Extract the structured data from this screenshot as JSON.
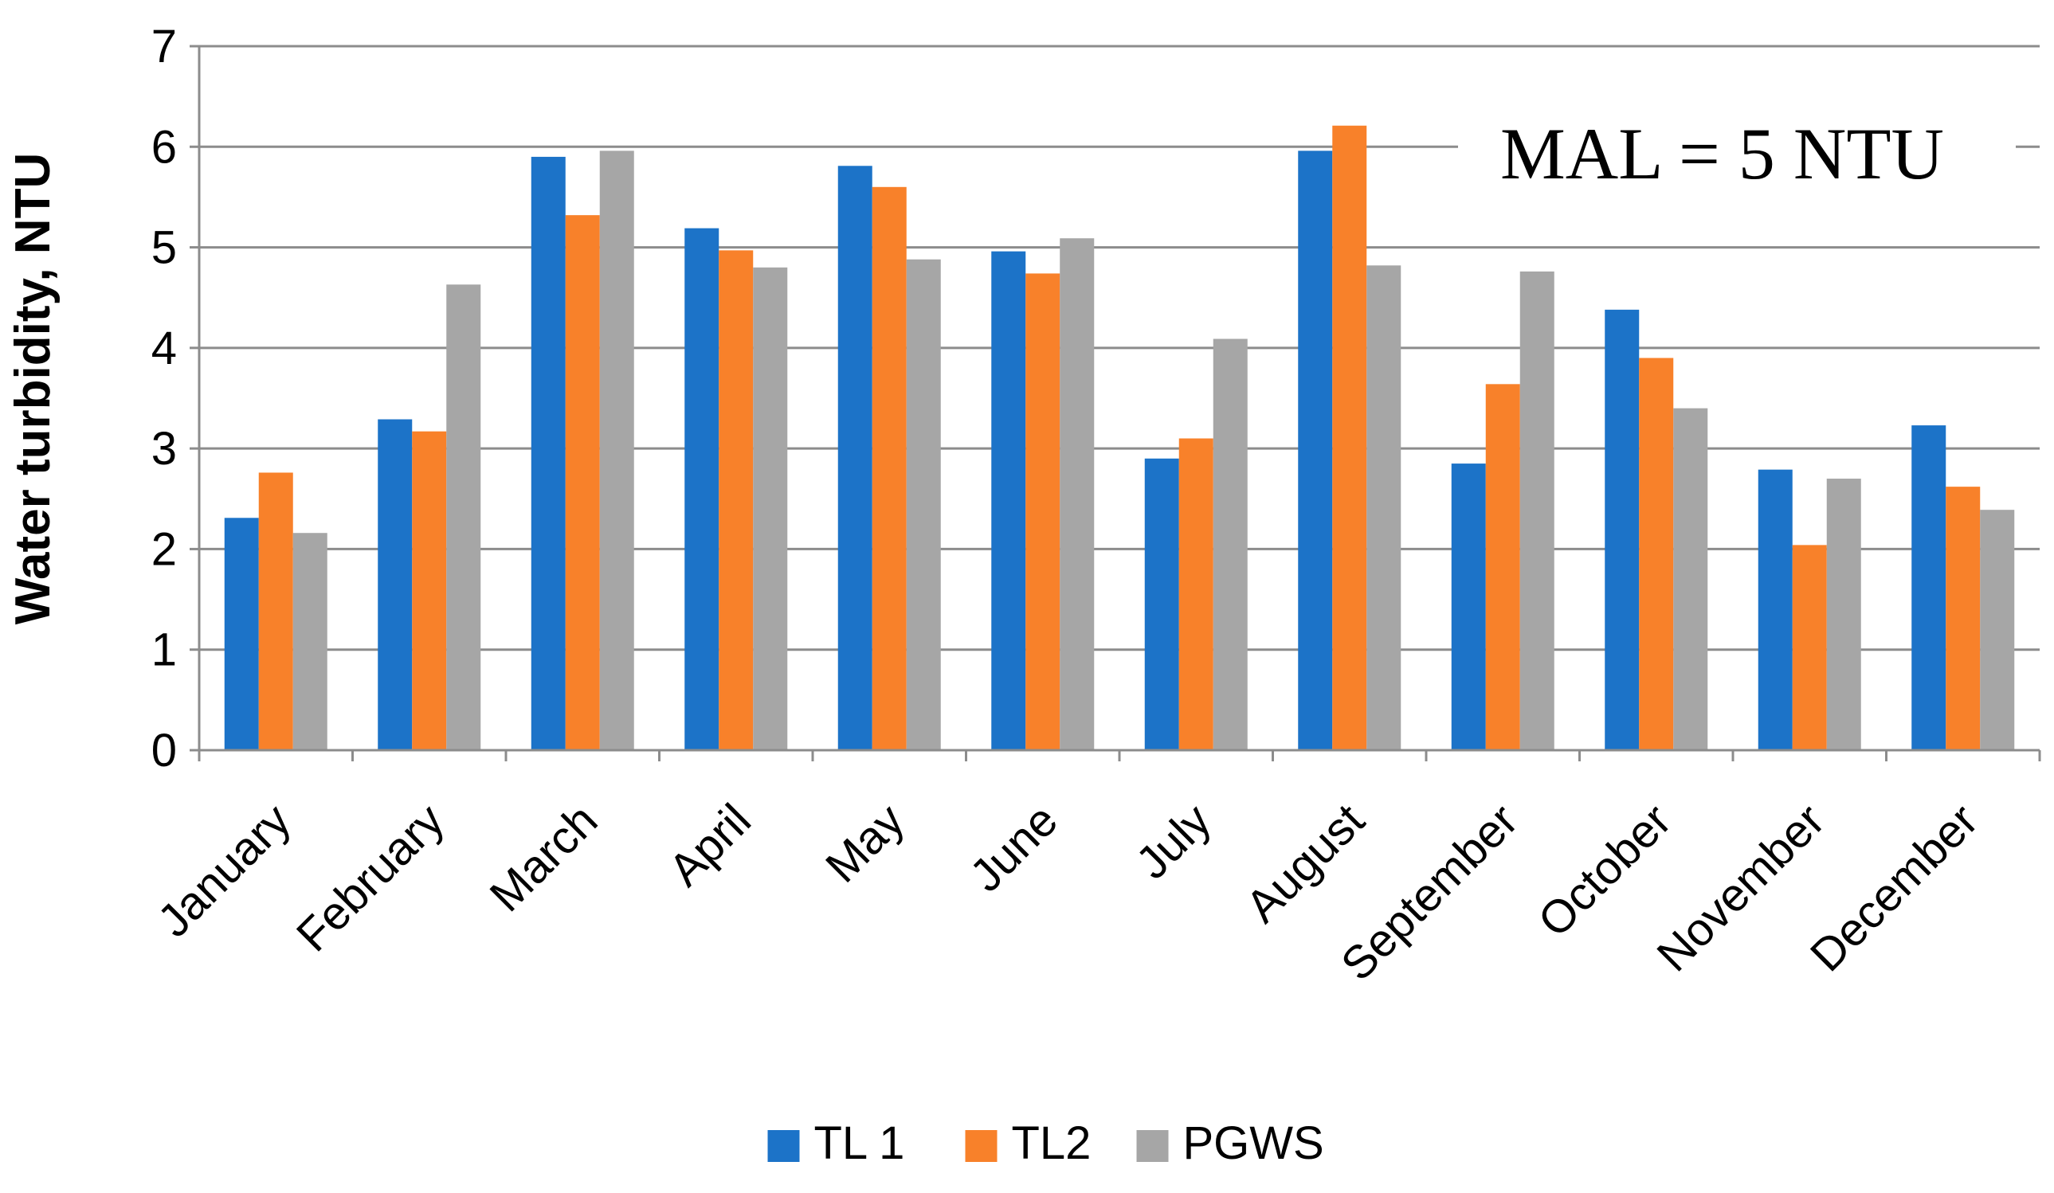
{
  "chart_data": {
    "type": "bar",
    "title": "",
    "xlabel": "",
    "ylabel": "Water turbidity, NTU",
    "ylim": [
      0,
      7
    ],
    "yticks": [
      0,
      1,
      2,
      3,
      4,
      5,
      6,
      7
    ],
    "grid": true,
    "legend_position": "bottom",
    "annotation": "MAL = 5 NTU",
    "categories": [
      "January",
      "February",
      "March",
      "April",
      "May",
      "June",
      "July",
      "August",
      "September",
      "October",
      "November",
      "December"
    ],
    "series": [
      {
        "name": "TL 1",
        "color": "#1C73C8",
        "values": [
          2.31,
          3.29,
          5.9,
          5.19,
          5.81,
          4.96,
          2.9,
          5.96,
          2.85,
          4.38,
          2.79,
          3.23
        ]
      },
      {
        "name": "TL2",
        "color": "#F8812A",
        "values": [
          2.76,
          3.17,
          5.32,
          4.97,
          5.6,
          4.74,
          3.1,
          6.21,
          3.64,
          3.9,
          2.04,
          2.62
        ]
      },
      {
        "name": "PGWS",
        "color": "#A6A6A6",
        "values": [
          2.16,
          4.63,
          5.96,
          4.8,
          4.88,
          5.09,
          4.09,
          4.82,
          4.76,
          3.4,
          2.7,
          2.39
        ]
      }
    ]
  }
}
